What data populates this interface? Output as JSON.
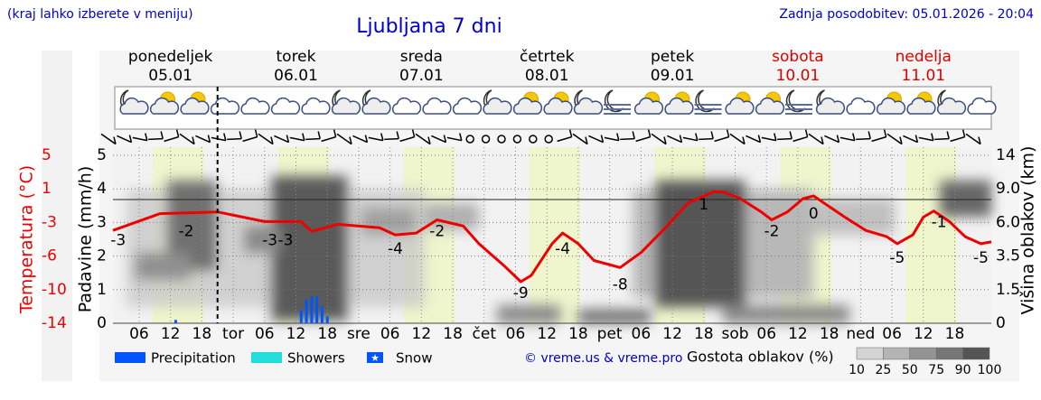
{
  "header": {
    "note": "(kraj lahko izberete v meniju)",
    "updated": "Zadnja posodobitev: 05.01.2026 - 20:04"
  },
  "chart_data": {
    "type": "meteogram",
    "title": "Ljubljana 7 dni",
    "ylabel": "Padavine (mm/h)",
    "y2label": "Temperatura (°C)",
    "y3label": "Višina oblakov (km)",
    "xlim": [
      1,
      169
    ],
    "ylim": [
      0,
      5
    ],
    "yticks": [
      0,
      1,
      2,
      3,
      4,
      5
    ],
    "y2lim": [
      -14,
      5
    ],
    "y2ticks": [
      -14,
      {
        "value": -10.2,
        "label": "-10"
      },
      {
        "value": -6.4,
        "label": "-6"
      },
      {
        "value": -2.6,
        "label": "-3"
      },
      {
        "value": 1.2,
        "label": "1"
      },
      5
    ],
    "y3ticks": [
      0,
      1.5,
      3.5,
      {
        "value": 6,
        "label": "6.0"
      },
      {
        "value": 9,
        "label": "9.0"
      },
      14
    ],
    "xticks": [
      {
        "value": 6,
        "label": "06"
      },
      12,
      18,
      {
        "value": 24,
        "label": "tor"
      },
      {
        "value": 30,
        "label": "06"
      },
      {
        "value": 36,
        "label": "12"
      },
      {
        "value": 42,
        "label": "18"
      },
      {
        "value": 48,
        "label": "sre"
      },
      {
        "value": 54,
        "label": "06"
      },
      {
        "value": 60,
        "label": "12"
      },
      {
        "value": 66,
        "label": "18"
      },
      {
        "value": 72,
        "label": "čet"
      },
      {
        "value": 78,
        "label": "06"
      },
      {
        "value": 84,
        "label": "12"
      },
      {
        "value": 90,
        "label": "18"
      },
      {
        "value": 96,
        "label": "pet"
      },
      {
        "value": 102,
        "label": "06"
      },
      {
        "value": 108,
        "label": "12"
      },
      {
        "value": 114,
        "label": "18"
      },
      {
        "value": 120,
        "label": "sob"
      },
      {
        "value": 126,
        "label": "06"
      },
      {
        "value": 132,
        "label": "12"
      },
      {
        "value": 138,
        "label": "18"
      },
      {
        "value": 144,
        "label": "ned"
      },
      {
        "value": 150,
        "label": "06"
      },
      {
        "value": 156,
        "label": "12"
      },
      {
        "value": 162,
        "label": "18"
      }
    ],
    "days": [
      {
        "name": "ponedeljek",
        "date": "05.01",
        "color": "#000000"
      },
      {
        "name": "torek",
        "date": "06.01",
        "color": "#000000"
      },
      {
        "name": "sreda",
        "date": "07.01",
        "color": "#000000"
      },
      {
        "name": "četrtek",
        "date": "08.01",
        "color": "#000000"
      },
      {
        "name": "petek",
        "date": "09.01",
        "color": "#000000"
      },
      {
        "name": "sobota",
        "date": "10.01",
        "color": "#dd0000"
      },
      {
        "name": "nedelja",
        "date": "11.01",
        "color": "#dd0000"
      }
    ],
    "daylight_hours": [
      8.6,
      18.4
    ],
    "current_time_x": 21,
    "series": [
      {
        "name": "Temperatura",
        "axis": "y2",
        "color": "#ee0000",
        "x": [
          1,
          10,
          21,
          30,
          37,
          39,
          44,
          52,
          55,
          59,
          63,
          68,
          71,
          76,
          79,
          81,
          85,
          87,
          90,
          93,
          98,
          102,
          107,
          111,
          116,
          118,
          121,
          125,
          127,
          130,
          133,
          135,
          137,
          141,
          145,
          149,
          151,
          154,
          156,
          158,
          161,
          164,
          167,
          169
        ],
        "values": [
          -3.5,
          -1.6,
          -1.4,
          -2.5,
          -2.5,
          -3.6,
          -2.8,
          -3.2,
          -4.0,
          -3.8,
          -2.3,
          -3.0,
          -5.0,
          -7.6,
          -9.3,
          -8.6,
          -5.0,
          -3.8,
          -5.0,
          -6.9,
          -7.7,
          -6.0,
          -3.0,
          -0.4,
          0.9,
          0.8,
          0.1,
          -1.4,
          -2.3,
          -1.4,
          0.1,
          0.4,
          -0.4,
          -2.0,
          -3.5,
          -4.2,
          -5.0,
          -4.0,
          -2.0,
          -1.3,
          -2.5,
          -4.2,
          -5.0,
          -4.8
        ]
      }
    ],
    "annotations": [
      {
        "x": 2,
        "value": -3
      },
      {
        "x": 15,
        "value": -2
      },
      {
        "x": 31,
        "value": -3
      },
      {
        "x": 34,
        "value": -3
      },
      {
        "x": 55,
        "value": -4
      },
      {
        "x": 63,
        "value": -2
      },
      {
        "x": 79,
        "value": -9
      },
      {
        "x": 87,
        "value": -4
      },
      {
        "x": 98,
        "value": -8
      },
      {
        "x": 114,
        "value": 1
      },
      {
        "x": 127,
        "value": -2
      },
      {
        "x": 135,
        "value": 0
      },
      {
        "x": 151,
        "value": -5
      },
      {
        "x": 159,
        "value": -1
      },
      {
        "x": 167,
        "value": -5
      }
    ],
    "precipitation": {
      "color": "#0055ff",
      "x": [
        13,
        37,
        38,
        39,
        40,
        41,
        42
      ],
      "values": [
        0.1,
        0.4,
        0.7,
        0.8,
        0.8,
        0.5,
        0.2
      ]
    },
    "legend": [
      {
        "name": "Precipitation",
        "color": "#0055ff"
      },
      {
        "name": "Showers",
        "color": "#22dddd"
      },
      {
        "name": "Snow",
        "color": "#0055ff"
      }
    ],
    "credit": "© vreme.us & vreme.pro",
    "cloud_density": {
      "title": "Gostota oblakov (%)",
      "levels": [
        10,
        25,
        50,
        75,
        90,
        100
      ],
      "colors": [
        "#d4d4d4",
        "#b4b4b4",
        "#949494",
        "#767676",
        "#555555"
      ]
    }
  }
}
